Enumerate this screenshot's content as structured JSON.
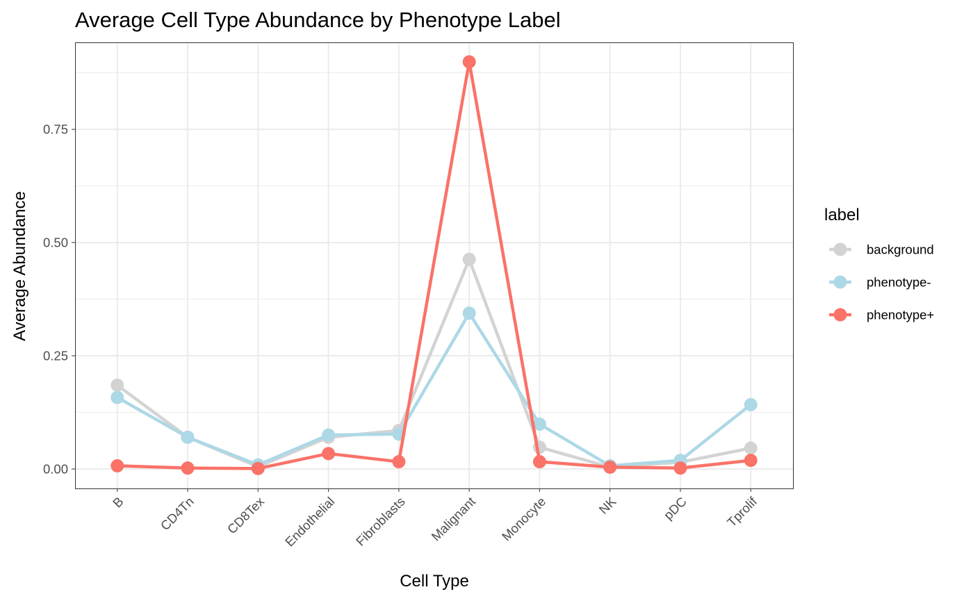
{
  "chart_data": {
    "type": "line",
    "title": "Average Cell Type Abundance by Phenotype Label",
    "xlabel": "Cell Type",
    "ylabel": "Average Abundance",
    "categories": [
      "B",
      "CD4Tn",
      "CD8Tex",
      "Endothelial",
      "Fibroblasts",
      "Malignant",
      "Monocyte",
      "NK",
      "pDC",
      "Tprolif"
    ],
    "ylim": [
      -0.043,
      0.942
    ],
    "yticks": [
      0,
      0.25,
      0.5,
      0.75
    ],
    "ytick_labels": [
      "0.00",
      "0.25",
      "0.50",
      "0.75"
    ],
    "grid": true,
    "legend": {
      "title": "label",
      "position": "right"
    },
    "series": [
      {
        "name": "background",
        "color": "#d3d3d3",
        "values": [
          0.185,
          0.07,
          0.005,
          0.07,
          0.085,
          0.463,
          0.048,
          0.004,
          0.015,
          0.046
        ]
      },
      {
        "name": "phenotype-",
        "color": "#add8e6",
        "values": [
          0.158,
          0.07,
          0.009,
          0.075,
          0.077,
          0.344,
          0.099,
          0.007,
          0.019,
          0.142
        ]
      },
      {
        "name": "phenotype+",
        "color": "#fa7268",
        "values": [
          0.007,
          0.002,
          0.001,
          0.034,
          0.016,
          0.899,
          0.016,
          0.004,
          0.002,
          0.019
        ]
      }
    ]
  }
}
